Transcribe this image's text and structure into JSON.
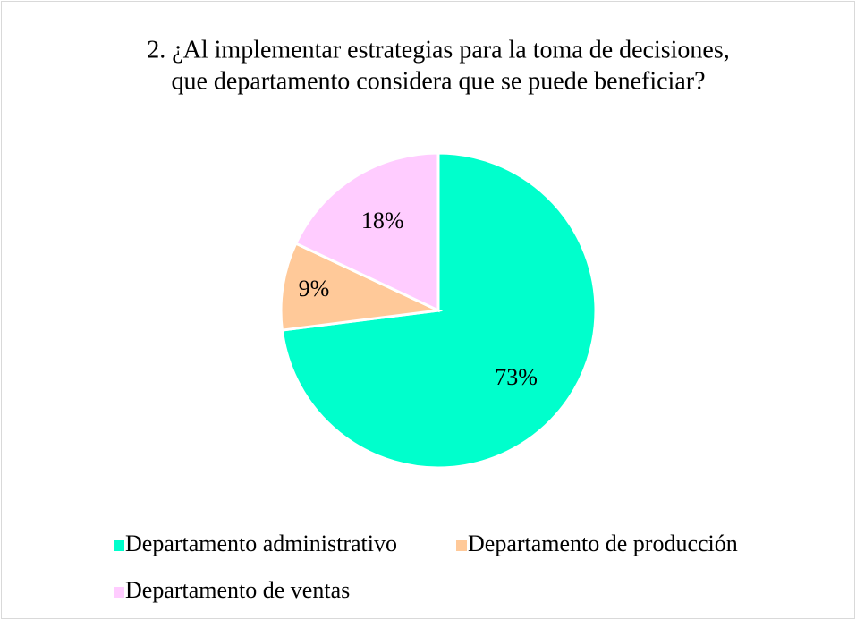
{
  "chart_data": {
    "type": "pie",
    "title": [
      "2. ¿Al implementar estrategias para la toma de decisiones,",
      "que departamento considera que se puede beneficiar?"
    ],
    "categories": [
      "Departamento administrativo",
      "Departamento de producción",
      "Departamento de ventas"
    ],
    "values": [
      73,
      9,
      18
    ],
    "value_labels": [
      "73%",
      "9%",
      "18%"
    ],
    "colors": [
      "#00ffcc",
      "#ffc999",
      "#ffccff"
    ],
    "legend": "bottom"
  }
}
